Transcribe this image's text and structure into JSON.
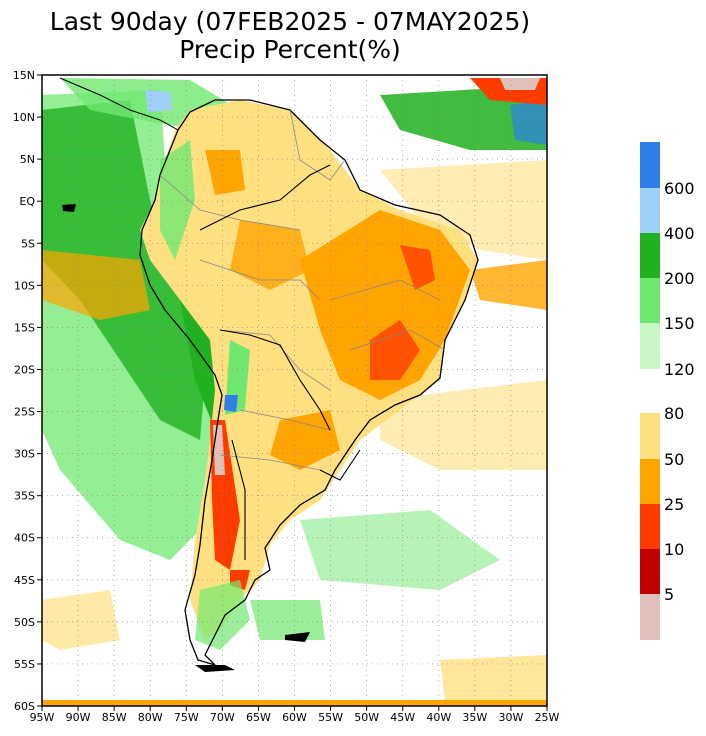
{
  "title": {
    "line1": "Last 90day (07FEB2025 - 07MAY2025)",
    "line2": "Precip Percent(%)"
  },
  "map": {
    "lat_labels": [
      "15N",
      "10N",
      "5N",
      "EQ",
      "5S",
      "10S",
      "15S",
      "20S",
      "25S",
      "30S",
      "35S",
      "40S",
      "45S",
      "50S",
      "55S",
      "60S"
    ],
    "lon_labels": [
      "95W",
      "90W",
      "85W",
      "80W",
      "75W",
      "70W",
      "65W",
      "60W",
      "55W",
      "50W",
      "45W",
      "40W",
      "35W",
      "30W",
      "25W"
    ],
    "extent": {
      "lon": [
        -95,
        -25
      ],
      "lat": [
        -60,
        15
      ]
    }
  },
  "legend": {
    "upper_labels": [
      "600",
      "400",
      "200",
      "150",
      "120"
    ],
    "lower_labels": [
      "80",
      "50",
      "25",
      "10",
      "5"
    ],
    "colors": {
      "upper": [
        "#2f7fe8",
        "#9fd0f8",
        "#20b020",
        "#70e870",
        "#c8f8c8"
      ],
      "lower": [
        "#ffe080",
        "#ffa400",
        "#ff3c00",
        "#c00000",
        "#e0c0b8"
      ]
    }
  }
}
